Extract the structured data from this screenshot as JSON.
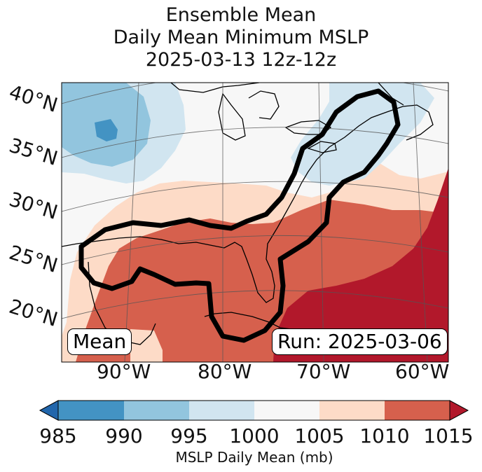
{
  "title": {
    "line1": "Ensemble Mean",
    "line2": "Daily Mean Minimum MSLP",
    "line3": "2025-03-13 12z-12z"
  },
  "map": {
    "lat_labels": [
      "40°N",
      "35°N",
      "30°N",
      "25°N",
      "20°N"
    ],
    "lon_labels": [
      "90°W",
      "80°W",
      "70°W",
      "60°W"
    ],
    "mean_box": "Mean",
    "run_box": "Run: 2025-03-06"
  },
  "colorbar": {
    "ticks": [
      "985",
      "990",
      "995",
      "1000",
      "1005",
      "1010",
      "1015"
    ],
    "label": "MSLP Daily Mean (mb)",
    "bins": [
      {
        "range": "<985",
        "color": "#2166ac"
      },
      {
        "range": "985-990",
        "color": "#4393c3"
      },
      {
        "range": "990-995",
        "color": "#92c5de"
      },
      {
        "range": "995-1000",
        "color": "#d1e5f0"
      },
      {
        "range": "1000-1005",
        "color": "#f7f7f7"
      },
      {
        "range": "1005-1010",
        "color": "#fddbc7"
      },
      {
        "range": "1010-1015",
        "color": "#d6604d"
      },
      {
        "range": ">1015",
        "color": "#b2182b"
      }
    ]
  },
  "chart_data": {
    "type": "heatmap",
    "title": "Ensemble Mean Daily Mean Minimum MSLP 2025-03-13 12z-12z",
    "variable": "MSLP Daily Mean (mb)",
    "levels": [
      985,
      990,
      995,
      1000,
      1005,
      1010,
      1015
    ],
    "lat_range": [
      15,
      42
    ],
    "lon_range": [
      -97,
      -58
    ],
    "contour": "bold black outline enclosing the Gulf of Mexico and US East Coast"
  }
}
